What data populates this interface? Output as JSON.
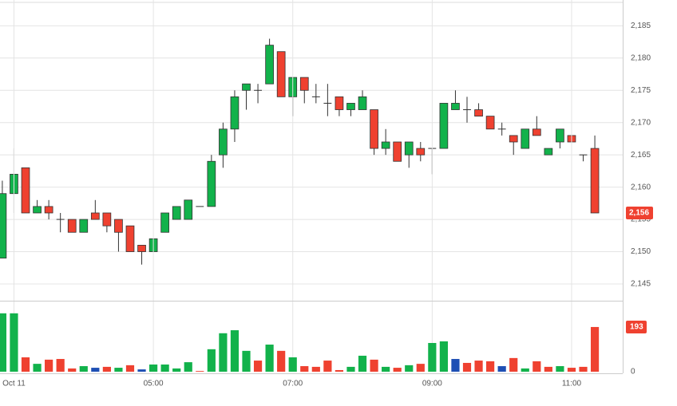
{
  "chart_data": [
    {
      "type": "candlestick",
      "up_color": "#12b24b",
      "down_color": "#ef4130",
      "open": [
        2149,
        2159,
        2163,
        2156,
        2157,
        2155,
        2155,
        2153,
        2156,
        2156,
        2155,
        2154,
        2151,
        2150,
        2153,
        2155,
        2155,
        2157,
        2157,
        2165,
        2169,
        2175,
        2175,
        2176,
        2181,
        2174,
        2177,
        2174,
        2173,
        2174,
        2172,
        2172,
        2172,
        2166,
        2167,
        2165,
        2166,
        2166,
        2166,
        2172,
        2172,
        2172,
        2171,
        2169,
        2168,
        2166,
        2169,
        2165,
        2167,
        2168,
        2165,
        2166
      ],
      "high": [
        2161,
        2166,
        2163,
        2158,
        2158,
        2156,
        2155,
        2155,
        2158,
        2156,
        2155,
        2154,
        2151,
        2152,
        2156,
        2157,
        2158,
        2157,
        2165,
        2170,
        2175,
        2176,
        2176,
        2183,
        2181,
        2177,
        2177,
        2176,
        2176,
        2174,
        2173,
        2175,
        2172,
        2169,
        2167,
        2167,
        2167,
        2166,
        2173,
        2175,
        2174,
        2173,
        2171,
        2170,
        2168,
        2169,
        2171,
        2166,
        2169,
        2168,
        2165,
        2168
      ],
      "low": [
        2149,
        2156,
        2156,
        2156,
        2155,
        2153,
        2153,
        2153,
        2155,
        2153,
        2150,
        2150,
        2148,
        2150,
        2153,
        2155,
        2155,
        2157,
        2157,
        2163,
        2167,
        2172,
        2173,
        2176,
        2174,
        2171,
        2173,
        2173,
        2171,
        2171,
        2171,
        2172,
        2165,
        2165,
        2164,
        2163,
        2164,
        2162,
        2166,
        2172,
        2170,
        2171,
        2169,
        2168,
        2165,
        2166,
        2168,
        2165,
        2166,
        2167,
        2164,
        2156
      ],
      "close": [
        2159,
        2162,
        2156,
        2157,
        2156,
        2155,
        2153,
        2155,
        2155,
        2154,
        2153,
        2150,
        2150,
        2152,
        2156,
        2157,
        2158,
        2157,
        2164,
        2169,
        2174,
        2176,
        2175,
        2182,
        2174,
        2177,
        2175,
        2174,
        2173,
        2172,
        2173,
        2174,
        2166,
        2167,
        2164,
        2167,
        2165,
        2166,
        2173,
        2173,
        2172,
        2171,
        2169,
        2169,
        2167,
        2169,
        2168,
        2166,
        2169,
        2167,
        2165,
        2156
      ],
      "last_label": {
        "value": 2156,
        "label": "2,156"
      },
      "ylim": [
        2142.4,
        2189
      ],
      "yticks": [
        {
          "value": 2145,
          "label": "2,145"
        },
        {
          "value": 2150,
          "label": "2,150"
        },
        {
          "value": 2155,
          "label": "2,155"
        },
        {
          "value": 2160,
          "label": "2,160"
        },
        {
          "value": 2165,
          "label": "2,165"
        },
        {
          "value": 2170,
          "label": "2,170"
        },
        {
          "value": 2175,
          "label": "2,175"
        },
        {
          "value": 2180,
          "label": "2,180"
        },
        {
          "value": 2185,
          "label": "2,185"
        }
      ],
      "xlim": [
        -0.2,
        53.4
      ],
      "grid": true
    },
    {
      "type": "bar",
      "values": [
        252,
        252,
        62,
        34,
        52,
        55,
        14,
        24,
        17,
        21,
        17,
        28,
        10,
        31,
        31,
        14,
        41,
        3,
        97,
        166,
        179,
        90,
        48,
        117,
        90,
        62,
        24,
        21,
        48,
        7,
        21,
        69,
        52,
        21,
        17,
        28,
        34,
        124,
        131,
        55,
        38,
        48,
        45,
        24,
        59,
        14,
        45,
        21,
        24,
        17,
        21,
        193
      ],
      "colors": [
        "#12b24b",
        "#12b24b",
        "#ef4130",
        "#12b24b",
        "#ef4130",
        "#ef4130",
        "#ef4130",
        "#12b24b",
        "#1e4fb4",
        "#ef4130",
        "#12b24b",
        "#ef4130",
        "#1e4fb4",
        "#12b24b",
        "#12b24b",
        "#12b24b",
        "#12b24b",
        "#ef4130",
        "#12b24b",
        "#12b24b",
        "#12b24b",
        "#12b24b",
        "#ef4130",
        "#12b24b",
        "#ef4130",
        "#12b24b",
        "#ef4130",
        "#ef4130",
        "#ef4130",
        "#ef4130",
        "#12b24b",
        "#12b24b",
        "#ef4130",
        "#12b24b",
        "#ef4130",
        "#12b24b",
        "#ef4130",
        "#12b24b",
        "#12b24b",
        "#1e4fb4",
        "#ef4130",
        "#ef4130",
        "#ef4130",
        "#1e4fb4",
        "#ef4130",
        "#12b24b",
        "#ef4130",
        "#ef4130",
        "#12b24b",
        "#ef4130",
        "#ef4130",
        "#ef4130"
      ],
      "ylim": [
        0,
        303
      ],
      "yticks": [
        0
      ],
      "xlim": [
        -0.2,
        53.4
      ],
      "xticks": [
        {
          "value": 1,
          "label": "Oct 11"
        },
        {
          "value": 13,
          "label": "05:00"
        },
        {
          "value": 25,
          "label": "07:00"
        },
        {
          "value": 37,
          "label": "09:00"
        },
        {
          "value": 49,
          "label": "11:00"
        }
      ],
      "grid": true
    }
  ]
}
